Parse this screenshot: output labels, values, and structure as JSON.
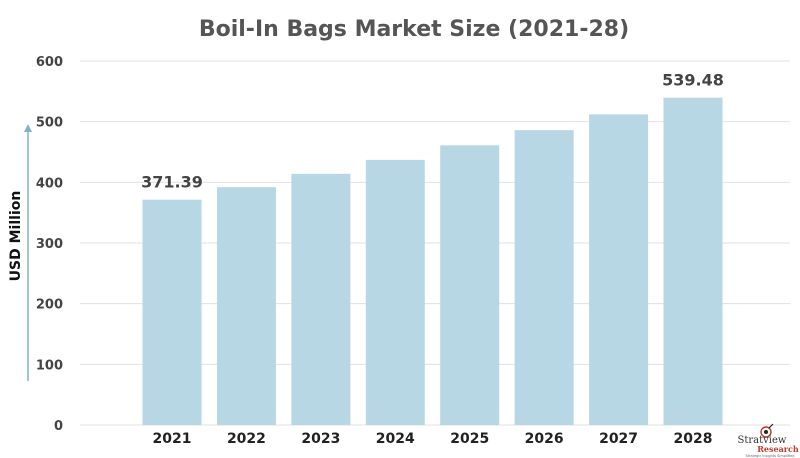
{
  "chart_data": {
    "type": "bar",
    "title": "Boil-In Bags Market Size (2021-28)",
    "ylabel": "USD Million",
    "xlabel": "",
    "categories": [
      "2021",
      "2022",
      "2023",
      "2024",
      "2025",
      "2026",
      "2027",
      "2028"
    ],
    "values": [
      371.39,
      392,
      414,
      437,
      461,
      486,
      512,
      539.48
    ],
    "data_labels": [
      {
        "index": 0,
        "text": "371.39"
      },
      {
        "index": 7,
        "text": "539.48"
      }
    ],
    "ylim": [
      0,
      600
    ],
    "yticks": [
      "0",
      "100",
      "200",
      "300",
      "400",
      "500",
      "600"
    ],
    "grid": true,
    "legend": "none",
    "bar_color": "#b7d7e5",
    "grid_color": "#e0e0e0",
    "arrow_color": "#7fb5c9"
  },
  "branding": {
    "logo_main": "Stratview",
    "logo_sub": "Research",
    "tagline": "Strategic Insights Simplified",
    "icon": "stratview-globe-icon"
  }
}
